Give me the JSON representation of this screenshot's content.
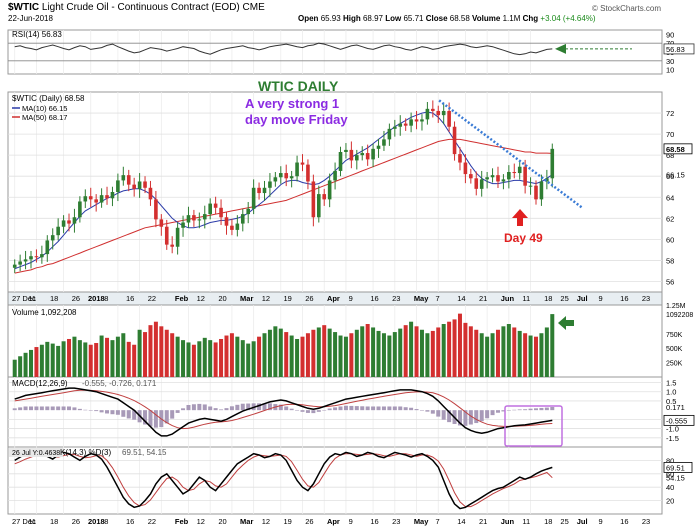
{
  "header": {
    "symbol": "$WTIC",
    "description": "Light Crude Oil - Continuous Contract (EOD)",
    "exchange": "CME",
    "date": "22-Jun-2018",
    "open_label": "Open",
    "open": "65.93",
    "high_label": "High",
    "high": "68.97",
    "low_label": "Low",
    "low": "65.71",
    "close_label": "Close",
    "close": "68.58",
    "volume_label": "Volume",
    "volume": "1.1M",
    "chg_label": "Chg",
    "chg": "+3.04 (+4.64%)",
    "watermark": "© StockCharts.com"
  },
  "colors": {
    "up": "#2e7d32",
    "down": "#d32f2f",
    "ma10": "#2a3aa8",
    "ma50": "#d03030",
    "annot_green": "#2e7d32",
    "annot_purple": "#8b2be2",
    "annot_red": "#e02020",
    "trendline": "#3a7bd5",
    "box": "#c070e0"
  },
  "annotations": {
    "title": "WTIC DAILY",
    "subtitle_line1": "A very strong 1",
    "subtitle_line2": "day move Friday",
    "day_label": "Day 49"
  },
  "chart_data": [
    {
      "panel": "rsi",
      "type": "line",
      "legend": "RSI(14) 56.83",
      "ylim": [
        0,
        100
      ],
      "ticks": [
        "90",
        "70",
        "50",
        "30",
        "10"
      ],
      "levels": [
        70,
        30
      ],
      "last_value_label": "56.83",
      "values": [
        62,
        64,
        60,
        58,
        55,
        60,
        63,
        66,
        62,
        58,
        55,
        60,
        64,
        62,
        56,
        58,
        60,
        65,
        68,
        62,
        57,
        52,
        48,
        50,
        55,
        60,
        58,
        56,
        52,
        55,
        58,
        62,
        60,
        58,
        52,
        48,
        45,
        50,
        55,
        58,
        60,
        62,
        64,
        60,
        58,
        55,
        58,
        62,
        64,
        66,
        68,
        65,
        62,
        60,
        64,
        66,
        70,
        68,
        64,
        60,
        56,
        60,
        64,
        66,
        62,
        58,
        56,
        60,
        64,
        66,
        62,
        60,
        56,
        54,
        58,
        62,
        60,
        56,
        58,
        62,
        64,
        66,
        68,
        66,
        62,
        60,
        62,
        64,
        62,
        58,
        54,
        50,
        46,
        44,
        46,
        50,
        48,
        52,
        56,
        57
      ]
    },
    {
      "panel": "price",
      "type": "ohlc",
      "legend_symbol": "$WTIC (Daily) 68.58",
      "legend_ma10": "MA(10) 66.15",
      "legend_ma50": "MA(50) 68.17",
      "ylim": [
        55,
        74
      ],
      "ticks": [
        "72",
        "70",
        "68",
        "66",
        "64",
        "62",
        "60",
        "58",
        "56"
      ],
      "last_price_label": "68.58",
      "ma10_label": "66.15",
      "x_labels": [
        "27 Dec",
        "11",
        "18",
        "26",
        "2018",
        "8",
        "16",
        "22",
        "Feb",
        "12",
        "20",
        "Mar",
        "12",
        "19",
        "26",
        "Apr",
        "9",
        "16",
        "23",
        "May",
        "7",
        "14",
        "21",
        "Jun",
        "11",
        "18",
        "25",
        "Jul",
        "9",
        "16",
        "23",
        "Aug"
      ],
      "close": [
        57.6,
        57.9,
        58.1,
        58.4,
        58.3,
        58.6,
        59.9,
        60.4,
        61.2,
        61.8,
        61.5,
        62.1,
        63.6,
        64.1,
        63.8,
        63.5,
        64.2,
        63.9,
        64.5,
        65.6,
        66.1,
        65.2,
        64.8,
        65.5,
        64.9,
        63.8,
        61.9,
        61.2,
        59.5,
        59.3,
        61.1,
        61.6,
        62.3,
        61.8,
        61.9,
        62.4,
        63.4,
        63.0,
        62.1,
        61.3,
        60.9,
        61.5,
        62.4,
        62.9,
        64.9,
        64.4,
        64.9,
        65.5,
        65.9,
        66.3,
        65.8,
        66.0,
        67.3,
        67.1,
        65.5,
        62.1,
        64.3,
        63.8,
        65.6,
        66.5,
        68.3,
        68.5,
        67.5,
        68.0,
        68.2,
        67.6,
        68.6,
        68.9,
        69.5,
        70.5,
        70.7,
        71.0,
        70.8,
        71.4,
        71.2,
        71.4,
        72.4,
        72.2,
        71.8,
        72.2,
        70.7,
        68.1,
        67.3,
        66.2,
        65.8,
        64.8,
        65.7,
        65.9,
        66.1,
        65.5,
        65.7,
        66.4,
        66.3,
        66.9,
        65.1,
        65.1,
        63.8,
        65.5,
        65.8,
        68.6
      ],
      "ma10": [
        57.2,
        57.4,
        57.6,
        57.8,
        58.1,
        58.4,
        58.8,
        59.3,
        59.8,
        60.4,
        61.0,
        61.6,
        62.2,
        62.7,
        63.0,
        63.3,
        63.6,
        63.9,
        64.1,
        64.4,
        64.6,
        64.7,
        64.8,
        64.8,
        64.6,
        64.3,
        63.8,
        63.2,
        62.6,
        62.0,
        61.6,
        61.3,
        61.1,
        61.1,
        61.2,
        61.4,
        61.6,
        61.7,
        61.8,
        61.8,
        61.9,
        62.0,
        62.2,
        62.5,
        62.9,
        63.3,
        63.7,
        64.2,
        64.7,
        65.2,
        65.5,
        65.6,
        65.6,
        65.4,
        65.3,
        65.2,
        65.3,
        65.6,
        66.0,
        66.5,
        67.0,
        67.5,
        67.8,
        68.1,
        68.4,
        68.7,
        69.1,
        69.5,
        69.9,
        70.3,
        70.7,
        71.0,
        71.3,
        71.6,
        71.8,
        72.0,
        72.1,
        72.0,
        71.6,
        71.0,
        70.2,
        69.4,
        68.6,
        67.8,
        67.0,
        66.3,
        65.8,
        65.5,
        65.3,
        65.3,
        65.4,
        65.5,
        65.6,
        65.6,
        65.5,
        65.4,
        65.3,
        65.5,
        65.8,
        66.15
      ],
      "ma50": [
        56.8,
        56.9,
        57.0,
        57.1,
        57.3,
        57.4,
        57.6,
        57.7,
        57.9,
        58.1,
        58.3,
        58.5,
        58.7,
        58.9,
        59.1,
        59.3,
        59.5,
        59.7,
        59.9,
        60.1,
        60.3,
        60.5,
        60.7,
        60.9,
        61.1,
        61.2,
        61.3,
        61.4,
        61.5,
        61.6,
        61.7,
        61.8,
        61.9,
        62.0,
        62.1,
        62.2,
        62.3,
        62.4,
        62.5,
        62.6,
        62.7,
        62.8,
        62.9,
        63.0,
        63.1,
        63.2,
        63.3,
        63.4,
        63.5,
        63.6,
        63.7,
        63.9,
        64.1,
        64.3,
        64.5,
        64.7,
        64.9,
        65.1,
        65.3,
        65.5,
        65.7,
        65.9,
        66.1,
        66.3,
        66.5,
        66.7,
        66.9,
        67.1,
        67.3,
        67.5,
        67.7,
        67.9,
        68.1,
        68.3,
        68.5,
        68.7,
        68.9,
        69.1,
        69.3,
        69.4,
        69.5,
        69.5,
        69.5,
        69.4,
        69.3,
        69.2,
        69.1,
        69.0,
        68.9,
        68.8,
        68.7,
        68.6,
        68.5,
        68.4,
        68.3,
        68.3,
        68.2,
        68.2,
        68.2,
        68.17
      ]
    },
    {
      "panel": "volume",
      "type": "bar",
      "legend": "Volume 1,092,208",
      "ylim": [
        0,
        1250000
      ],
      "ticks": [
        "1.25M",
        "1092208",
        "750K",
        "500K",
        "250K"
      ],
      "values": [
        300,
        360,
        420,
        470,
        520,
        560,
        610,
        580,
        540,
        620,
        660,
        700,
        640,
        600,
        560,
        590,
        720,
        680,
        640,
        700,
        760,
        610,
        560,
        820,
        780,
        900,
        960,
        880,
        820,
        760,
        700,
        640,
        600,
        560,
        620,
        680,
        640,
        600,
        660,
        720,
        760,
        700,
        640,
        580,
        620,
        700,
        760,
        820,
        880,
        840,
        780,
        720,
        660,
        700,
        760,
        820,
        860,
        900,
        840,
        780,
        720,
        700,
        760,
        820,
        880,
        920,
        860,
        800,
        760,
        720,
        780,
        840,
        900,
        960,
        880,
        820,
        760,
        800,
        860,
        920,
        960,
        1000,
        1100,
        940,
        880,
        820,
        760,
        700,
        760,
        820,
        880,
        920,
        860,
        800,
        760,
        720,
        700,
        760,
        860,
        1092
      ]
    },
    {
      "panel": "macd",
      "type": "line",
      "legend_prefix": "MACD(12,26,9)",
      "legend_values": "-0.555, -0.726, 0.171",
      "ylim": [
        -2.0,
        1.8
      ],
      "ticks": [
        "1.5",
        "1.0",
        "0.5",
        "-0.5",
        "-1.0",
        "-1.5"
      ],
      "labels_right": [
        "0.171",
        "-0.555"
      ],
      "macd": [
        0.6,
        0.7,
        0.8,
        0.85,
        0.9,
        0.95,
        1.0,
        1.05,
        1.1,
        1.15,
        1.2,
        1.2,
        1.15,
        1.1,
        1.05,
        1.0,
        0.9,
        0.8,
        0.7,
        0.6,
        0.4,
        0.2,
        0.0,
        -0.3,
        -0.6,
        -0.9,
        -1.2,
        -1.4,
        -1.4,
        -1.3,
        -1.1,
        -0.9,
        -0.7,
        -0.6,
        -0.5,
        -0.45,
        -0.5,
        -0.55,
        -0.6,
        -0.5,
        -0.35,
        -0.2,
        -0.05,
        0.05,
        0.15,
        0.25,
        0.35,
        0.45,
        0.5,
        0.55,
        0.5,
        0.4,
        0.3,
        0.2,
        0.1,
        0.05,
        0.1,
        0.2,
        0.3,
        0.4,
        0.5,
        0.6,
        0.65,
        0.7,
        0.75,
        0.8,
        0.85,
        0.9,
        0.95,
        1.0,
        1.05,
        1.1,
        1.1,
        1.1,
        1.05,
        1.0,
        0.9,
        0.75,
        0.5,
        0.2,
        -0.1,
        -0.4,
        -0.7,
        -0.95,
        -1.1,
        -1.2,
        -1.25,
        -1.2,
        -1.1,
        -1.0,
        -0.95,
        -0.9,
        -0.85,
        -0.82,
        -0.8,
        -0.75,
        -0.7,
        -0.65,
        -0.6,
        -0.555
      ],
      "signal": [
        0.5,
        0.55,
        0.6,
        0.65,
        0.7,
        0.75,
        0.8,
        0.85,
        0.9,
        0.95,
        1.0,
        1.05,
        1.08,
        1.08,
        1.07,
        1.05,
        1.02,
        0.98,
        0.92,
        0.85,
        0.76,
        0.65,
        0.52,
        0.36,
        0.18,
        -0.02,
        -0.25,
        -0.48,
        -0.68,
        -0.84,
        -0.95,
        -1.0,
        -0.98,
        -0.92,
        -0.84,
        -0.76,
        -0.7,
        -0.66,
        -0.64,
        -0.61,
        -0.56,
        -0.49,
        -0.4,
        -0.31,
        -0.22,
        -0.12,
        -0.02,
        0.08,
        0.17,
        0.25,
        0.3,
        0.32,
        0.31,
        0.29,
        0.25,
        0.21,
        0.19,
        0.19,
        0.21,
        0.25,
        0.3,
        0.36,
        0.42,
        0.48,
        0.54,
        0.6,
        0.65,
        0.7,
        0.75,
        0.8,
        0.85,
        0.9,
        0.94,
        0.97,
        0.99,
        1.0,
        0.98,
        0.94,
        0.85,
        0.72,
        0.55,
        0.35,
        0.13,
        -0.1,
        -0.32,
        -0.5,
        -0.65,
        -0.76,
        -0.83,
        -0.86,
        -0.88,
        -0.88,
        -0.87,
        -0.86,
        -0.85,
        -0.83,
        -0.8,
        -0.77,
        -0.74,
        -0.726
      ]
    },
    {
      "panel": "stoch",
      "type": "line",
      "legend_date": "26 Jul Y:0.4638",
      "legend_prefix": "K(14,3) %D(3)",
      "legend_values": "69.51, 54.15",
      "ylim": [
        0,
        100
      ],
      "ticks": [
        "80",
        "60",
        "40",
        "20"
      ],
      "labels_right": [
        "69.51",
        "54.15"
      ],
      "k": [
        80,
        85,
        90,
        88,
        92,
        90,
        86,
        82,
        88,
        92,
        90,
        85,
        80,
        86,
        90,
        88,
        82,
        70,
        55,
        40,
        25,
        15,
        10,
        12,
        20,
        30,
        45,
        55,
        60,
        50,
        40,
        30,
        35,
        45,
        55,
        50,
        40,
        35,
        45,
        55,
        65,
        75,
        80,
        85,
        90,
        88,
        84,
        86,
        90,
        88,
        80,
        65,
        50,
        40,
        35,
        45,
        60,
        75,
        85,
        90,
        88,
        92,
        90,
        86,
        88,
        92,
        90,
        86,
        84,
        88,
        92,
        90,
        88,
        85,
        88,
        90,
        86,
        80,
        70,
        50,
        30,
        15,
        8,
        10,
        15,
        20,
        25,
        30,
        35,
        38,
        40,
        45,
        50,
        55,
        52,
        55,
        60,
        64,
        67,
        69.51
      ],
      "d": [
        75,
        78,
        82,
        85,
        88,
        90,
        89,
        86,
        85,
        87,
        89,
        89,
        86,
        84,
        85,
        87,
        87,
        80,
        69,
        55,
        40,
        27,
        17,
        12,
        14,
        21,
        32,
        43,
        53,
        55,
        50,
        40,
        35,
        37,
        45,
        50,
        48,
        42,
        40,
        45,
        55,
        65,
        73,
        80,
        85,
        88,
        87,
        86,
        87,
        88,
        86,
        78,
        65,
        52,
        42,
        40,
        47,
        60,
        73,
        83,
        88,
        90,
        90,
        89,
        88,
        89,
        90,
        89,
        87,
        86,
        88,
        90,
        90,
        88,
        86,
        88,
        88,
        85,
        79,
        67,
        50,
        32,
        18,
        11,
        11,
        15,
        20,
        25,
        30,
        34,
        38,
        41,
        45,
        50,
        52,
        54,
        56,
        59,
        62,
        54.15
      ]
    }
  ]
}
